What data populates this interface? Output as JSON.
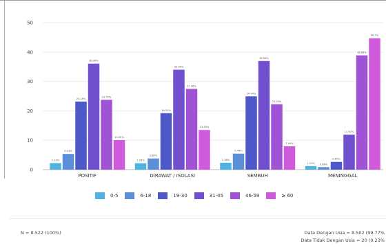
{
  "chart_data": {
    "type": "bar",
    "categories": [
      "POSITIF",
      "DIRAWAT / ISOLASI",
      "SEMBUH",
      "MENINGGAL"
    ],
    "ylim": [
      0,
      50
    ],
    "yticks": [
      0,
      10,
      20,
      30,
      40,
      50
    ],
    "grid": true,
    "legend_position": "bottom",
    "series": [
      {
        "name": "0-5",
        "color": "#4fb3e2",
        "values": [
          2.23,
          2.18,
          2.36,
          1.21
        ],
        "labels": [
          "2.23%",
          "2.18%",
          "2.36%",
          "1.21%"
        ]
      },
      {
        "name": "6-18",
        "color": "#5b8fd9",
        "values": [
          5.34,
          3.8,
          5.44,
          0.86
        ],
        "labels": [
          "5.34%",
          "3.80%",
          "5.44%",
          "0.86%"
        ]
      },
      {
        "name": "19-30",
        "color": "#4d58c9",
        "values": [
          23.16,
          19.21,
          24.94,
          2.64
        ],
        "labels": [
          "23.16%",
          "19.21%",
          "24.94%",
          "2.64%"
        ]
      },
      {
        "name": "31-45",
        "color": "#7150cf",
        "values": [
          36.06,
          33.99,
          36.96,
          11.92
        ],
        "labels": [
          "36.06%",
          "33.99%",
          "36.96%",
          "11.92%"
        ]
      },
      {
        "name": "46-59",
        "color": "#a153d6",
        "values": [
          23.75,
          27.46,
          22.24,
          38.88
        ],
        "labels": [
          "23.75%",
          "27.46%",
          "22.24%",
          "38.88%"
        ]
      },
      {
        "name": "≥ 60",
        "color": "#cf5bdc",
        "values": [
          10.05,
          13.5,
          7.94,
          44.7
        ],
        "labels": [
          "10.05%",
          "13.50%",
          "7.94%",
          "44.7%"
        ]
      }
    ]
  },
  "footer": {
    "left": "N = 8.522 (100%)",
    "right_line1": "Data Dengan Usia = 8.502 (99.77%",
    "right_line2": "Data Tidak Dengan Usia = 20 (0.23%"
  }
}
